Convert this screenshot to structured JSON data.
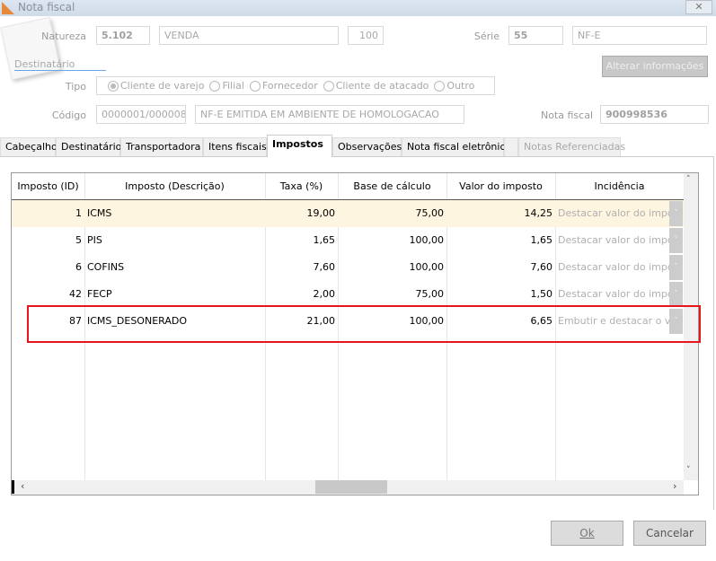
{
  "window": {
    "title": "Nota fiscal",
    "close": "✕"
  },
  "header": {
    "natureza_label": "Natureza",
    "natureza_code": "5.102",
    "natureza_desc": "VENDA",
    "natureza_num": "100",
    "serie_label": "Série",
    "serie_code": "55",
    "serie_desc": "NF-E",
    "section": "Destinatário",
    "alterar_button": "Alterar informações",
    "tipo_label": "Tipo",
    "tipo_options": [
      {
        "label": "Cliente de varejo",
        "selected": true
      },
      {
        "label": "Filial"
      },
      {
        "label": "Fornecedor"
      },
      {
        "label": "Cliente de atacado"
      },
      {
        "label": "Outro"
      }
    ],
    "codigo_label": "Código",
    "codigo_value": "0000001/000008",
    "codigo_desc": "NF-E EMITIDA EM AMBIENTE DE HOMOLOGACAO",
    "nota_label": "Nota fiscal",
    "nota_value": "900998536"
  },
  "tabs": [
    "Cabeçalho",
    "Destinatário",
    "Transportadora",
    "Itens fiscais",
    "Impostos",
    "Observações",
    "Nota fiscal eletrônica",
    "Notas Referenciadas"
  ],
  "active_tab": "Impostos",
  "grid": {
    "columns": [
      "Imposto (ID)",
      "Imposto (Descrição)",
      "Taxa (%)",
      "Base de cálculo",
      "Valor do imposto",
      "Incidência"
    ],
    "rows": [
      {
        "id": "1",
        "desc": "ICMS",
        "taxa": "19,00",
        "base": "75,00",
        "valor": "14,25",
        "inc": "Destacar valor do imposto"
      },
      {
        "id": "5",
        "desc": "PIS",
        "taxa": "1,65",
        "base": "100,00",
        "valor": "1,65",
        "inc": "Destacar valor do imposto"
      },
      {
        "id": "6",
        "desc": "COFINS",
        "taxa": "7,60",
        "base": "100,00",
        "valor": "7,60",
        "inc": "Destacar valor do imposto"
      },
      {
        "id": "42",
        "desc": "FECP",
        "taxa": "2,00",
        "base": "75,00",
        "valor": "1,50",
        "inc": "Destacar valor do imposto"
      },
      {
        "id": "87",
        "desc": "ICMS_DESONERADO",
        "taxa": "21,00",
        "base": "100,00",
        "valor": "6,65",
        "inc": "Embutir e destacar o valor"
      }
    ]
  },
  "footer": {
    "ok": "Ok",
    "cancel": "Cancelar"
  },
  "colors": {
    "highlight_box": "#e8141c",
    "selected_row": "#fdf5e0"
  }
}
